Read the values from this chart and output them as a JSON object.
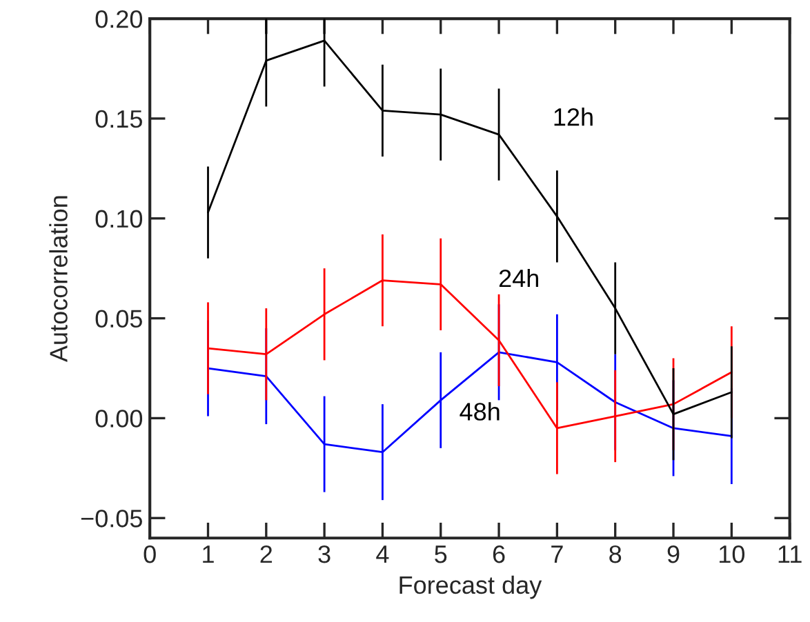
{
  "chart_data": {
    "type": "line",
    "xlabel": "Forecast day",
    "ylabel": "Autocorrelation",
    "x": [
      1,
      2,
      3,
      4,
      5,
      6,
      7,
      8,
      9,
      10
    ],
    "series": [
      {
        "name": "12h",
        "color": "#000000",
        "values": [
          0.103,
          0.179,
          0.189,
          0.154,
          0.152,
          0.142,
          0.101,
          0.055,
          0.002,
          0.013
        ],
        "errors": [
          0.023,
          0.023,
          [
            0.166,
            0.2
          ],
          0.023,
          0.023,
          0.023,
          0.023,
          0.023,
          0.023,
          0.023
        ]
      },
      {
        "name": "24h",
        "color": "#ff0000",
        "values": [
          0.035,
          0.032,
          0.052,
          0.069,
          0.067,
          0.039,
          -0.005,
          0.001,
          0.007,
          0.023
        ],
        "errors": [
          0.023,
          0.023,
          0.023,
          0.023,
          0.023,
          0.023,
          0.023,
          0.023,
          0.023,
          0.023
        ]
      },
      {
        "name": "48h",
        "color": "#0000ff",
        "values": [
          0.025,
          0.021,
          -0.013,
          -0.017,
          0.009,
          0.033,
          0.028,
          0.008,
          -0.005,
          -0.009
        ],
        "errors": [
          0.024,
          0.024,
          0.024,
          0.024,
          0.024,
          0.024,
          0.024,
          0.024,
          0.024,
          0.024
        ]
      }
    ],
    "xlim": [
      0,
      11
    ],
    "xticks": [
      0,
      1,
      2,
      3,
      4,
      5,
      6,
      7,
      8,
      9,
      10,
      11
    ],
    "ylim": [
      -0.06,
      0.2
    ],
    "yticks": [
      {
        "value": -0.05,
        "label": "−0.05"
      },
      {
        "value": 0,
        "label": "0.00"
      },
      {
        "value": 0.05,
        "label": "0.05"
      },
      {
        "value": 0.1,
        "label": "0.10"
      },
      {
        "value": 0.15,
        "label": "0.15"
      },
      {
        "value": 0.2,
        "label": "0.20"
      }
    ],
    "grid": false,
    "legend": false,
    "marker": "none",
    "line_style": "solid"
  }
}
